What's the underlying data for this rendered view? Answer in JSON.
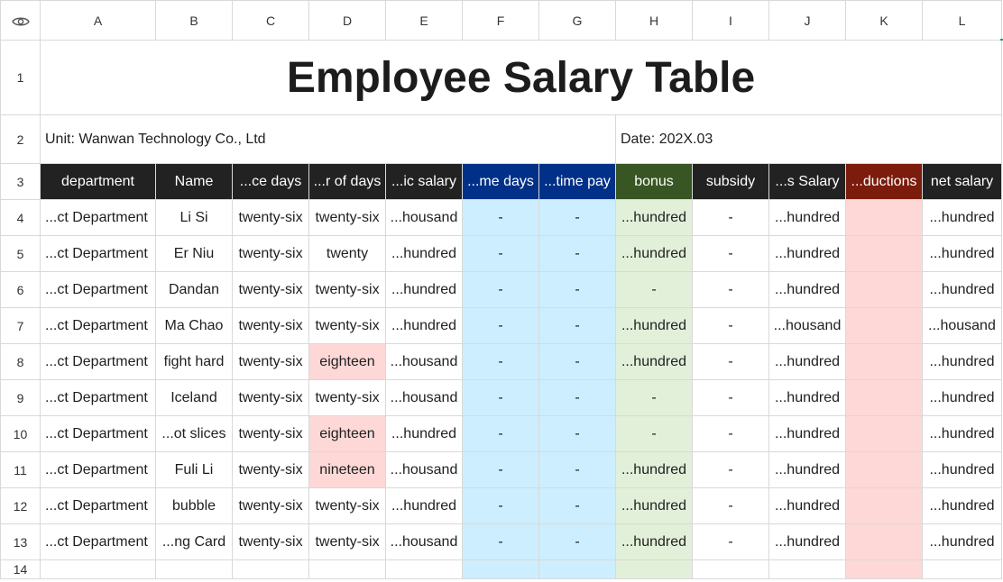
{
  "columns": [
    "A",
    "B",
    "C",
    "D",
    "E",
    "F",
    "G",
    "H",
    "I",
    "J",
    "K",
    "L"
  ],
  "row_numbers": [
    "1",
    "2",
    "3",
    "4",
    "5",
    "6",
    "7",
    "8",
    "9",
    "10",
    "11",
    "12",
    "13",
    "14"
  ],
  "title": "Employee Salary Table",
  "unit_label": "Unit: Wanwan Technology Co., Ltd",
  "date_label": "Date: 202X.03",
  "headers": [
    {
      "label": "department",
      "bg": "#222222"
    },
    {
      "label": "Name",
      "bg": "#222222"
    },
    {
      "label": "...ce days",
      "bg": "#222222"
    },
    {
      "label": "...r of days",
      "bg": "#222222"
    },
    {
      "label": "...ic salary",
      "bg": "#222222"
    },
    {
      "label": "...me days",
      "bg": "#003087"
    },
    {
      "label": "...time pay",
      "bg": "#003087"
    },
    {
      "label": "bonus",
      "bg": "#375623"
    },
    {
      "label": "subsidy",
      "bg": "#222222"
    },
    {
      "label": "...s Salary",
      "bg": "#222222"
    },
    {
      "label": "...ductions",
      "bg": "#7b1c0c"
    },
    {
      "label": "net salary",
      "bg": "#222222"
    }
  ],
  "rows": [
    [
      "...ct Department",
      "Li Si",
      "twenty-six",
      "twenty-six",
      "...housand",
      "-",
      "-",
      "...hundred",
      "-",
      "...hundred",
      "",
      "...hundred"
    ],
    [
      "...ct Department",
      "Er Niu",
      "twenty-six",
      "twenty",
      "...hundred",
      "-",
      "-",
      "...hundred",
      "-",
      "...hundred",
      "",
      "...hundred"
    ],
    [
      "...ct Department",
      "Dandan",
      "twenty-six",
      "twenty-six",
      "...hundred",
      "-",
      "-",
      "-",
      "-",
      "...hundred",
      "",
      "...hundred"
    ],
    [
      "...ct Department",
      "Ma Chao",
      "twenty-six",
      "twenty-six",
      "...hundred",
      "-",
      "-",
      "...hundred",
      "-",
      "...housand",
      "",
      "...housand"
    ],
    [
      "...ct Department",
      "fight hard",
      "twenty-six",
      "eighteen",
      "...housand",
      "-",
      "-",
      "...hundred",
      "-",
      "...hundred",
      "",
      "...hundred"
    ],
    [
      "...ct Department",
      "Iceland",
      "twenty-six",
      "twenty-six",
      "...housand",
      "-",
      "-",
      "-",
      "-",
      "...hundred",
      "",
      "...hundred"
    ],
    [
      "...ct Department",
      "...ot slices",
      "twenty-six",
      "eighteen",
      "...hundred",
      "-",
      "-",
      "-",
      "-",
      "...hundred",
      "",
      "...hundred"
    ],
    [
      "...ct Department",
      "Fuli Li",
      "twenty-six",
      "nineteen",
      "...housand",
      "-",
      "-",
      "...hundred",
      "-",
      "...hundred",
      "",
      "...hundred"
    ],
    [
      "...ct Department",
      "bubble",
      "twenty-six",
      "twenty-six",
      "...hundred",
      "-",
      "-",
      "...hundred",
      "-",
      "...hundred",
      "",
      "...hundred"
    ],
    [
      "...ct Department",
      "...ng Card",
      "twenty-six",
      "twenty-six",
      "...housand",
      "-",
      "-",
      "...hundred",
      "-",
      "...hundred",
      "",
      "...hundred"
    ]
  ],
  "highlight_days": [
    "eighteen",
    "nineteen",
    "twenty"
  ],
  "colors": {
    "overtime_bg": "#cdeefe",
    "bonus_bg": "#e2f0d9",
    "deduction_bg": "#fdd8d6",
    "gridline": "#d9d9d9"
  },
  "icons": {
    "corner": "eye-icon"
  }
}
